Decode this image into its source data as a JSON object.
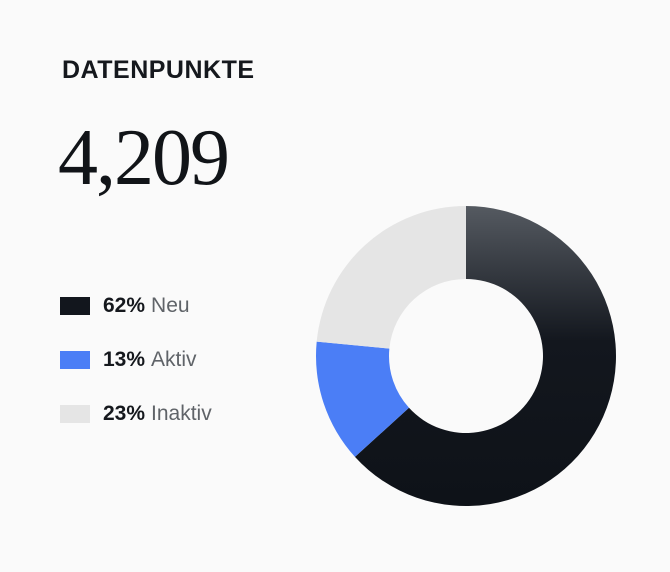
{
  "header": {
    "title": "DATENPUNKTE",
    "total": "4,209"
  },
  "legend": [
    {
      "pct": "62%",
      "label": "Neu",
      "color": "#12161d"
    },
    {
      "pct": "13%",
      "label": "Aktiv",
      "color": "#4b7ef6"
    },
    {
      "pct": "23%",
      "label": "Inaktiv",
      "color": "#e5e5e5"
    }
  ],
  "chart_data": {
    "type": "pie",
    "style": "donut",
    "total": 4209,
    "title": "DATENPUNKTE",
    "categories": [
      "Neu",
      "Aktiv",
      "Inaktiv"
    ],
    "values": [
      62,
      13,
      23
    ],
    "unit": "%",
    "colors": [
      "#12161d",
      "#4b7ef6",
      "#e5e5e5"
    ],
    "legend_placement": "left"
  }
}
